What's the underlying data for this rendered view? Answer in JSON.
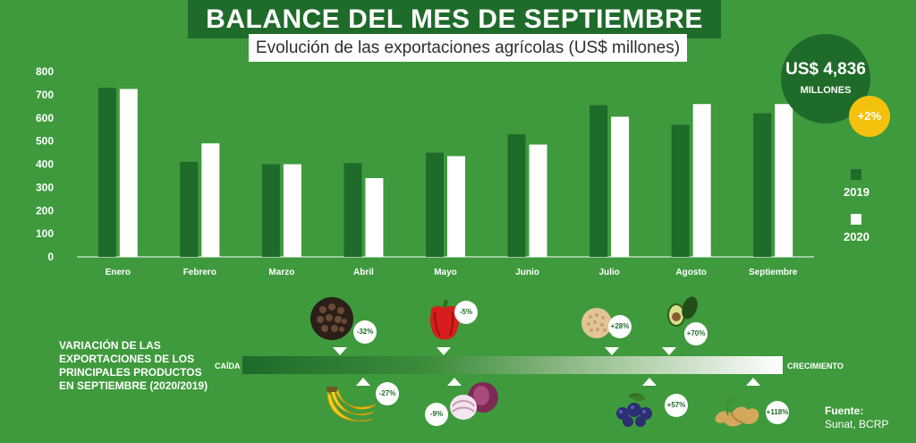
{
  "header": {
    "title": "BALANCE DEL MES DE SEPTIEMBRE",
    "subtitle": "Evolución de las exportaciones agrícolas (US$ millones)"
  },
  "total": {
    "amount": "US$ 4,836",
    "unit": "MILLONES",
    "change": "+2%"
  },
  "colors": {
    "series_2019": "#1f6b2a",
    "series_2020": "#ffffff",
    "background": "#3e9a3c",
    "accent": "#f4c20d"
  },
  "chart_data": {
    "type": "bar",
    "categories": [
      "Enero",
      "Febrero",
      "Marzo",
      "Abril",
      "Mayo",
      "Junio",
      "Julio",
      "Agosto",
      "Septiembre"
    ],
    "series": [
      {
        "name": "2019",
        "values": [
          730,
          410,
          400,
          405,
          450,
          530,
          655,
          570,
          620
        ]
      },
      {
        "name": "2020",
        "values": [
          725,
          490,
          400,
          340,
          435,
          485,
          605,
          660,
          660
        ]
      }
    ],
    "yticks": [
      0,
      100,
      200,
      300,
      400,
      500,
      600,
      700,
      800
    ],
    "ylim": [
      0,
      800
    ],
    "legend_position": "right"
  },
  "variation": {
    "title": "VARIACIÓN DE LAS EXPORTACIONES DE LOS PRINCIPALES PRODUCTOS EN SEPTIEMBRE (2020/2019)",
    "left_label": "CAÍDA",
    "right_label": "CRECIMIENTO",
    "products_above": [
      {
        "icon": "pepper-grains-icon",
        "change": "-32%"
      },
      {
        "icon": "bell-pepper-icon",
        "change": "-5%"
      },
      {
        "icon": "quinoa-icon",
        "change": "+28%"
      },
      {
        "icon": "avocado-icon",
        "change": "+70%"
      }
    ],
    "products_below": [
      {
        "icon": "banana-icon",
        "change": "-27%"
      },
      {
        "icon": "onion-icon",
        "change": "-9%"
      },
      {
        "icon": "blueberry-icon",
        "change": "+57%"
      },
      {
        "icon": "ginger-icon",
        "change": "+118%"
      }
    ]
  },
  "source": {
    "label": "Fuente:",
    "text": "Sunat, BCRP"
  }
}
